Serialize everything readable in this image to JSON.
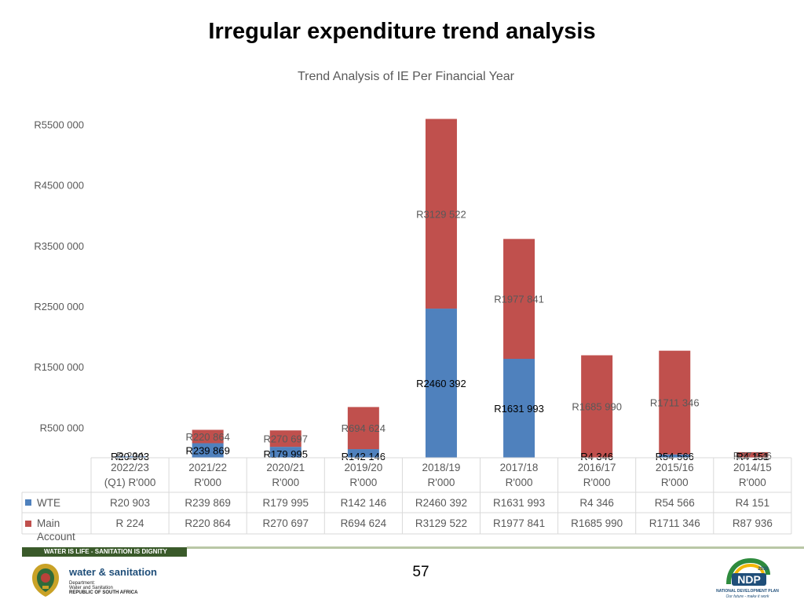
{
  "slide": {
    "title": "Irregular expenditure trend analysis",
    "page_number": "57",
    "footer_slogan": "WATER IS LIFE - SANITATION IS DIGNITY",
    "dept_logo": {
      "name": "water & sanitation",
      "line1": "Department:",
      "line2": "Water and Sanitation",
      "line3": "REPUBLIC OF SOUTH AFRICA"
    },
    "ndp_logo": {
      "text": "NDP",
      "year": "2030",
      "subtitle": "NATIONAL DEVELOPMENT PLAN",
      "tagline": "Our future - make it work"
    }
  },
  "colors": {
    "wte": "#4f81bd",
    "main": "#c0504d",
    "grid": "#d9d9d9",
    "text": "#595959"
  },
  "chart_data": {
    "type": "bar",
    "stacked": true,
    "title": "Trend Analysis of IE Per Financial Year",
    "yticks": [
      "R500 000",
      "R1500 000",
      "R2500 000",
      "R3500 000",
      "R4500 000",
      "R5500 000"
    ],
    "ytick_values": [
      500000,
      1500000,
      2500000,
      3500000,
      4500000,
      5500000
    ],
    "categories": [
      [
        "2022/23",
        "(Q1) R'000"
      ],
      [
        "2021/22",
        "R'000"
      ],
      [
        "2020/21",
        "R'000"
      ],
      [
        "2019/20",
        "R'000"
      ],
      [
        "2018/19",
        "R'000"
      ],
      [
        "2017/18",
        "R'000"
      ],
      [
        "2016/17",
        "R'000"
      ],
      [
        "2015/16",
        "R'000"
      ],
      [
        "2014/15",
        "R'000"
      ]
    ],
    "series": [
      {
        "name": "WTE",
        "color_key": "wte",
        "values": [
          20903,
          239869,
          179995,
          142146,
          2460392,
          1631993,
          4346,
          54566,
          4151
        ],
        "labels": [
          "R20 903",
          "R239 869",
          "R179 995",
          "R142 146",
          "R2460 392",
          "R1631 993",
          "R4 346",
          "R54 566",
          "R4 151"
        ]
      },
      {
        "name": "Main Account",
        "color_key": "main",
        "values": [
          224,
          220864,
          270697,
          694624,
          3129522,
          1977841,
          1685990,
          1711346,
          87936
        ],
        "labels": [
          "R 224",
          "R220 864",
          "R270 697",
          "R694 624",
          "R3129 522",
          "R1977 841",
          "R1685 990",
          "R1711 346",
          "R87 936"
        ]
      }
    ],
    "data_table": true,
    "legend_position": "table-left",
    "grid": false
  }
}
